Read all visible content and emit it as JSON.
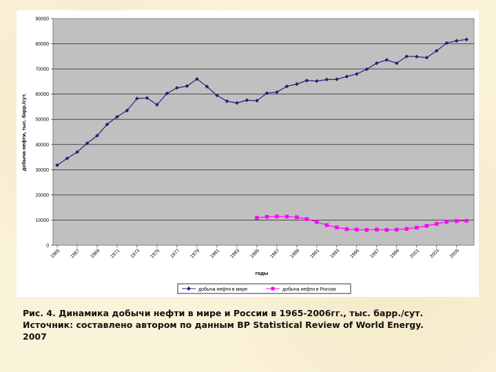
{
  "chart_data": {
    "type": "line",
    "title": "",
    "xlabel": "годы",
    "ylabel": "добыча нефти, тыс. барр./сут.",
    "ylim": [
      0,
      90000
    ],
    "yticks": [
      0,
      10000,
      20000,
      30000,
      40000,
      50000,
      60000,
      70000,
      80000,
      90000
    ],
    "xtick_labels": [
      "1965",
      "1967",
      "1969",
      "1971",
      "1973",
      "1975",
      "1977",
      "1979",
      "1981",
      "1983",
      "1985",
      "1987",
      "1989",
      "1991",
      "1993",
      "1995",
      "1997",
      "1999",
      "2001",
      "2003",
      "2005"
    ],
    "grid": "horizontal",
    "legend_position": "bottom",
    "series": [
      {
        "name": "добыча нефти в мире",
        "color": "#1f1f7a",
        "marker": "diamond",
        "x": [
          1965,
          1966,
          1967,
          1968,
          1969,
          1970,
          1971,
          1972,
          1973,
          1974,
          1975,
          1976,
          1977,
          1978,
          1979,
          1980,
          1981,
          1982,
          1983,
          1984,
          1985,
          1986,
          1987,
          1988,
          1989,
          1990,
          1991,
          1992,
          1993,
          1994,
          1995,
          1996,
          1997,
          1998,
          1999,
          2000,
          2001,
          2002,
          2003,
          2004,
          2005,
          2006
        ],
        "values": [
          31800,
          34500,
          37000,
          40500,
          43500,
          48000,
          51000,
          53500,
          58300,
          58500,
          55800,
          60300,
          62500,
          63200,
          66000,
          63000,
          59500,
          57200,
          56500,
          57600,
          57400,
          60400,
          60800,
          63100,
          64000,
          65400,
          65200,
          65800,
          65900,
          67000,
          68000,
          69900,
          72300,
          73600,
          72300,
          75000,
          74900,
          74500,
          77200,
          80300,
          81200,
          81700
        ]
      },
      {
        "name": "добыча нефти в России",
        "color": "#ff00ff",
        "marker": "square",
        "x": [
          1985,
          1986,
          1987,
          1988,
          1989,
          1990,
          1991,
          1992,
          1993,
          1994,
          1995,
          1996,
          1997,
          1998,
          1999,
          2000,
          2001,
          2002,
          2003,
          2004,
          2005,
          2006
        ],
        "values": [
          10900,
          11300,
          11400,
          11400,
          11100,
          10400,
          9300,
          8000,
          7100,
          6400,
          6200,
          6100,
          6200,
          6100,
          6200,
          6500,
          7000,
          7700,
          8500,
          9300,
          9600,
          9700
        ]
      }
    ]
  },
  "caption": {
    "line1": "Рис. 4.  Динамика добычи нефти в мире и России в 1965-2006гг., тыс. барр./сут.",
    "line2": "Источник: составлено автором по данным BP Statistical Review of World Energy.",
    "line3": "2007"
  }
}
